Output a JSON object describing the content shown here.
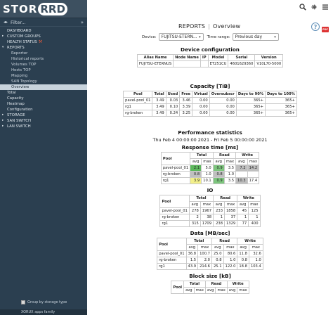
{
  "app": {
    "logo_left": "STOR",
    "logo_right": "RRD",
    "footer": "XORUX apps family"
  },
  "sidebar": {
    "filter_arrows": "◂▸",
    "filter_label": "Filter...",
    "filter_toggle": "»",
    "items": [
      {
        "label": "DASHBOARD",
        "level": "top"
      },
      {
        "label": "CUSTOM GROUPS",
        "level": "top",
        "tri": "▸"
      },
      {
        "label": "HEALTH STATUS",
        "level": "top",
        "wrench": true
      },
      {
        "label": "REPORTS",
        "level": "top",
        "tri": "▾"
      },
      {
        "label": "Reporter",
        "level": "sub"
      },
      {
        "label": "Historical reports",
        "level": "sub"
      },
      {
        "label": "Volumes TOP",
        "level": "sub"
      },
      {
        "label": "Hosts TOP",
        "level": "sub"
      },
      {
        "label": "Mapping",
        "level": "sub"
      },
      {
        "label": "SAN Topology",
        "level": "sub"
      },
      {
        "label": "Overview",
        "level": "sub",
        "active": true
      },
      {
        "label": "Total",
        "level": "top-mixed"
      },
      {
        "label": "Capacity",
        "level": "top-mixed"
      },
      {
        "label": "Heatmap",
        "level": "top-mixed"
      },
      {
        "label": "Configuration",
        "level": "top-mixed"
      },
      {
        "label": "STORAGE",
        "level": "top",
        "tri": "▸"
      },
      {
        "label": "SAN SWITCH",
        "level": "top",
        "tri": "▸"
      },
      {
        "label": "LAN SWITCH",
        "level": "top",
        "tri": "▸"
      }
    ],
    "group_label": "Group by storage type"
  },
  "header": {
    "title": "REPORTS",
    "separator": "|",
    "subtitle": "Overview",
    "pdf": "PDF"
  },
  "filters": {
    "device_label": "Device:",
    "device_value": "FUJITSU-ETERN...",
    "time_label": "Time range:",
    "time_value": "Previous day"
  },
  "device_config": {
    "title": "Device configuration",
    "headers": [
      "Alias Name",
      "Node Name",
      "IP",
      "Model",
      "Serial",
      "Version"
    ],
    "rows": [
      [
        "FUJITSU-ETERNUS",
        "",
        "",
        "ET251CU",
        "4601629360",
        "V10L70-5000"
      ]
    ]
  },
  "capacity": {
    "title": "Capacity [TiB]",
    "headers": [
      "Pool",
      "Total",
      "Used",
      "Free",
      "Virtual",
      "Oversubscr",
      "Days to 90%",
      "Days to 100%"
    ],
    "rows": [
      [
        "pavel-pool_01",
        "3.49",
        "0.03",
        "3.46",
        "0.00",
        "0.00",
        "365+",
        "365+"
      ],
      [
        "rg1",
        "3.49",
        "0.10",
        "3.39",
        "0.00",
        "0.00",
        "365+",
        "365+"
      ],
      [
        "rg-broken",
        "3.49",
        "0.24",
        "3.25",
        "0.00",
        "0.00",
        "365+",
        "365+"
      ]
    ]
  },
  "perf": {
    "title": "Performance statistics",
    "range": "Thu Feb 4 00:00:00 2021 - Fri Feb 5 00:00:00 2021"
  },
  "response_time": {
    "title": "Response time [ms]",
    "groups": [
      "Pool",
      "Total",
      "Read",
      "Write"
    ],
    "sub": [
      "avg",
      "max",
      "avg",
      "max",
      "avg",
      "max"
    ],
    "rows": [
      [
        "pavel-pool_01",
        "2.1",
        "5.0",
        "0.9",
        "3.5",
        "7.2",
        "14.2"
      ],
      [
        "rg-broken",
        "0.8",
        "1.0",
        "0.8",
        "1.0",
        "",
        ""
      ],
      [
        "rg1",
        "3.9",
        "10.1",
        "0.9",
        "3.5",
        "10.3",
        "17.4"
      ]
    ]
  },
  "io": {
    "title": "IO",
    "groups": [
      "Pool",
      "Total",
      "Read",
      "Write"
    ],
    "sub": [
      "avg",
      "max",
      "avg",
      "max",
      "avg",
      "max"
    ],
    "rows": [
      [
        "pavel-pool_01",
        "278",
        "1967",
        "233",
        "1858",
        "45",
        "125"
      ],
      [
        "rg-broken",
        "2",
        "38",
        "1",
        "37",
        "1",
        "1"
      ],
      [
        "rg1",
        "315",
        "1709",
        "238",
        "1329",
        "77",
        "400"
      ]
    ]
  },
  "data": {
    "title": "Data [MB/sec]",
    "groups": [
      "Pool",
      "Total",
      "Read",
      "Write"
    ],
    "sub": [
      "avg",
      "max",
      "avg",
      "max",
      "avg",
      "max"
    ],
    "rows": [
      [
        "pavel-pool_01",
        "36.8",
        "100.7",
        "25.0",
        "80.6",
        "11.8",
        "32.6"
      ],
      [
        "rg-broken",
        "1.5",
        "2.0",
        "0.8",
        "1.0",
        "0.8",
        "1.0"
      ],
      [
        "rg1",
        "43.9",
        "214.6",
        "25.1",
        "122.0",
        "18.8",
        "103.4"
      ]
    ]
  },
  "block_size": {
    "title": "Block size [kB]",
    "groups": [
      "Pool",
      "Total",
      "Read",
      "Write"
    ],
    "sub": [
      "avg",
      "max",
      "avg",
      "max",
      "avg",
      "max"
    ],
    "rows": []
  },
  "colors": {
    "sidebar_bg": "#2b3f50",
    "active_bg": "#c8d3dc",
    "green": "#5cb85c",
    "yellow": "#f3f08a",
    "gray": "#bfbfbf"
  },
  "icons": [
    "search-icon",
    "settings-icon",
    "menu-icon",
    "help-icon",
    "pdf-icon"
  ]
}
